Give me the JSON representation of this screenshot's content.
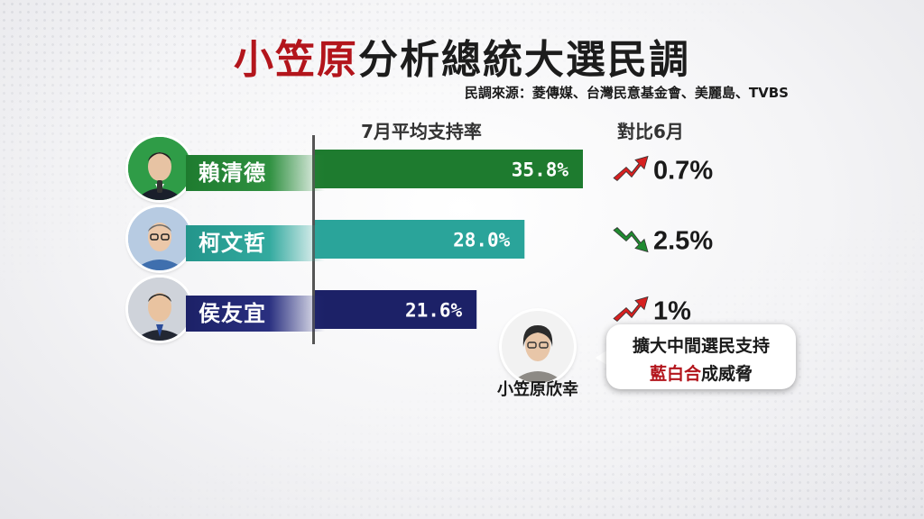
{
  "title": {
    "highlight": "小笠原",
    "rest": "分析總統大選民調"
  },
  "source": "民調來源：菱傳媒、台灣民意基金會、美麗島、TVBS",
  "chart_data": {
    "type": "bar",
    "orientation": "horizontal",
    "value_header": "7月平均支持率",
    "change_header": "對比6月",
    "candidates": [
      {
        "name": "賴清德",
        "value": 35.8,
        "value_label": "35.8%",
        "change_label": "0.7%",
        "direction": "up",
        "color": "#1e7b2f"
      },
      {
        "name": "柯文哲",
        "value": 28.0,
        "value_label": "28.0%",
        "change_label": "2.5%",
        "direction": "down",
        "color": "#2aa49a"
      },
      {
        "name": "侯友宜",
        "value": 21.6,
        "value_label": "21.6%",
        "change_label": "1%",
        "direction": "up",
        "color": "#1c2167"
      }
    ]
  },
  "commentary": {
    "name": "小笠原欣幸",
    "line1": "擴大中間選民支持",
    "line2_highlight": "藍白合",
    "line2_rest": "成威脅"
  },
  "colors": {
    "accent_red": "#b3151c",
    "arrow_up": "#d62020",
    "arrow_down": "#1f8a30"
  }
}
